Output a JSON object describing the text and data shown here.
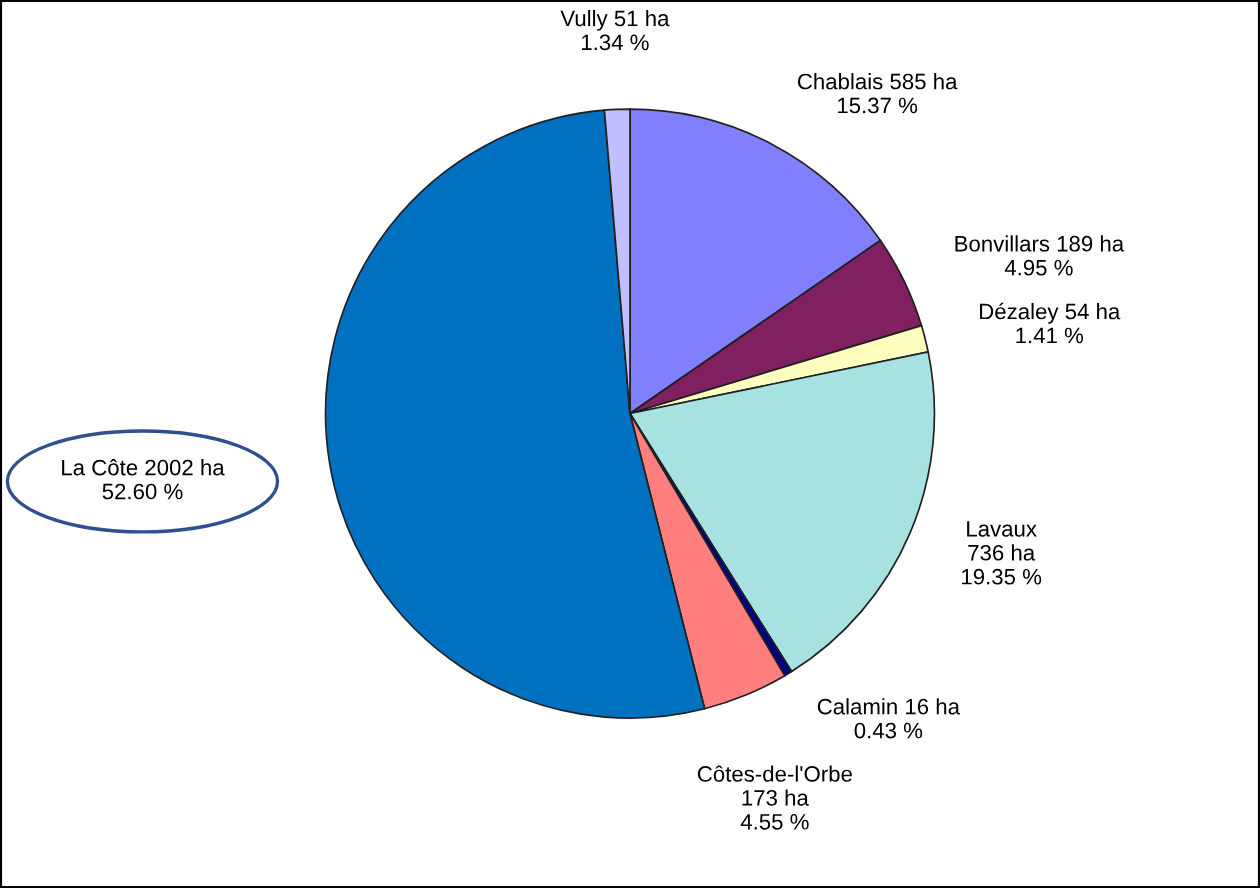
{
  "chart_data": {
    "type": "pie",
    "categories": [
      "Chablais 585 ha\n15.37 %",
      "Bonvillars 189 ha\n4.95 %",
      "Dézaley 54 ha\n1.41 %",
      "Lavaux\n736 ha\n19.35 %",
      "Calamin 16 ha\n0.43 %",
      "Côtes-de-l'Orbe\n173 ha\n4.55 %",
      "La Côte 2002 ha\n52.60 %",
      "Vully 51 ha\n1.34 %"
    ],
    "values": [
      585,
      189,
      54,
      736,
      16,
      173,
      2002,
      51
    ],
    "colors": [
      "#8080ff",
      "#802060",
      "#ffffc0",
      "#a6e2e2",
      "#000080",
      "#ff7f7f",
      "#0070c0",
      "#c0c0ff"
    ]
  }
}
